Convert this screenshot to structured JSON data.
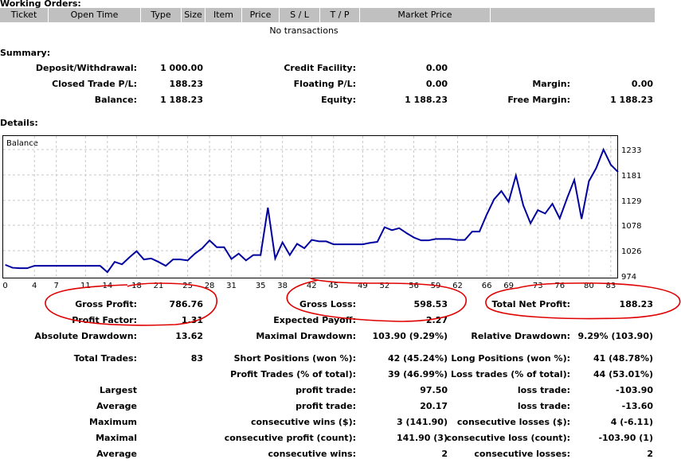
{
  "working_orders": {
    "title": "Working Orders:",
    "columns": [
      "Ticket",
      "Open Time",
      "Type",
      "Size",
      "Item",
      "Price",
      "S / L",
      "T / P",
      "Market Price",
      ""
    ],
    "empty_text": "No transactions"
  },
  "summary": {
    "title": "Summary:",
    "rows": [
      [
        {
          "label": "Deposit/Withdrawal:",
          "value": "1 000.00"
        },
        {
          "label": "Credit Facility:",
          "value": "0.00"
        },
        {
          "label": "",
          "value": ""
        }
      ],
      [
        {
          "label": "Closed Trade P/L:",
          "value": "188.23"
        },
        {
          "label": "Floating P/L:",
          "value": "0.00"
        },
        {
          "label": "Margin:",
          "value": "0.00"
        }
      ],
      [
        {
          "label": "Balance:",
          "value": "1 188.23"
        },
        {
          "label": "Equity:",
          "value": "1 188.23"
        },
        {
          "label": "Free Margin:",
          "value": "1 188.23"
        }
      ]
    ]
  },
  "details": {
    "title": "Details:",
    "rows": [
      [
        {
          "label": "Gross Profit:",
          "value": "786.76"
        },
        {
          "label": "Gross Loss:",
          "value": "598.53"
        },
        {
          "label": "Total Net Profit:",
          "value": "188.23"
        }
      ],
      [
        {
          "label": "Profit Factor:",
          "value": "1.31"
        },
        {
          "label": "Expected Payoff:",
          "value": "2.27"
        },
        {
          "label": "",
          "value": ""
        }
      ],
      [
        {
          "label": "Absolute Drawdown:",
          "value": "13.62"
        },
        {
          "label": "Maximal Drawdown:",
          "value": "103.90 (9.29%)"
        },
        {
          "label": "Relative Drawdown:",
          "value": "9.29% (103.90)"
        }
      ],
      [
        {
          "label": "Total Trades:",
          "value": "83"
        },
        {
          "label": "Short Positions (won %):",
          "value": "42 (45.24%)"
        },
        {
          "label": "Long Positions (won %):",
          "value": "41 (48.78%)"
        }
      ],
      [
        {
          "label": "",
          "value": ""
        },
        {
          "label": "Profit Trades (% of total):",
          "value": "39 (46.99%)"
        },
        {
          "label": "Loss trades (% of total):",
          "value": "44 (53.01%)"
        }
      ],
      [
        {
          "label": "Largest",
          "value": ""
        },
        {
          "label": "profit trade:",
          "value": "97.50"
        },
        {
          "label": "loss trade:",
          "value": "-103.90"
        }
      ],
      [
        {
          "label": "Average",
          "value": ""
        },
        {
          "label": "profit trade:",
          "value": "20.17"
        },
        {
          "label": "loss trade:",
          "value": "-13.60"
        }
      ],
      [
        {
          "label": "Maximum",
          "value": ""
        },
        {
          "label": "consecutive wins ($):",
          "value": "3 (141.90)"
        },
        {
          "label": "consecutive losses ($):",
          "value": "4 (-6.11)"
        }
      ],
      [
        {
          "label": "Maximal",
          "value": ""
        },
        {
          "label": "consecutive profit (count):",
          "value": "141.90 (3)"
        },
        {
          "label": "consecutive loss (count):",
          "value": "-103.90 (1)"
        }
      ],
      [
        {
          "label": "Average",
          "value": ""
        },
        {
          "label": "consecutive wins:",
          "value": "2"
        },
        {
          "label": "consecutive losses:",
          "value": "2"
        }
      ]
    ]
  },
  "chart_data": {
    "type": "line",
    "title": "Balance",
    "grid": true,
    "line_color": "#0000a0",
    "annotation_color": "#e00000",
    "xlim": [
      0,
      84
    ],
    "ylim": [
      974,
      1260
    ],
    "x_ticks": [
      "0",
      "4",
      "7",
      "11",
      "14",
      "18",
      "21",
      "25",
      "28",
      "31",
      "35",
      "38",
      "42",
      "45",
      "49",
      "52",
      "56",
      "59",
      "62",
      "66",
      "69",
      "73",
      "76",
      "80",
      "83"
    ],
    "y_ticks": [
      "1233",
      "1181",
      "1129",
      "1078",
      "1026",
      "974"
    ],
    "series": [
      {
        "values": [
          997,
          991,
          990,
          990,
          995,
          995,
          995,
          995,
          995,
          995,
          995,
          995,
          995,
          995,
          982,
          1003,
          998,
          1012,
          1025,
          1008,
          1010,
          1003,
          995,
          1008,
          1008,
          1006,
          1020,
          1031,
          1047,
          1033,
          1033,
          1009,
          1020,
          1006,
          1017,
          1017,
          1114,
          1010,
          1043,
          1017,
          1040,
          1031,
          1048,
          1045,
          1045,
          1039,
          1039,
          1039,
          1039,
          1039,
          1042,
          1044,
          1074,
          1068,
          1072,
          1062,
          1053,
          1047,
          1047,
          1050,
          1050,
          1050,
          1048,
          1048,
          1065,
          1065,
          1100,
          1131,
          1148,
          1126,
          1180,
          1119,
          1082,
          1109,
          1102,
          1122,
          1092,
          1133,
          1171,
          1091,
          1168,
          1195,
          1233,
          1202,
          1187
        ]
      }
    ]
  }
}
